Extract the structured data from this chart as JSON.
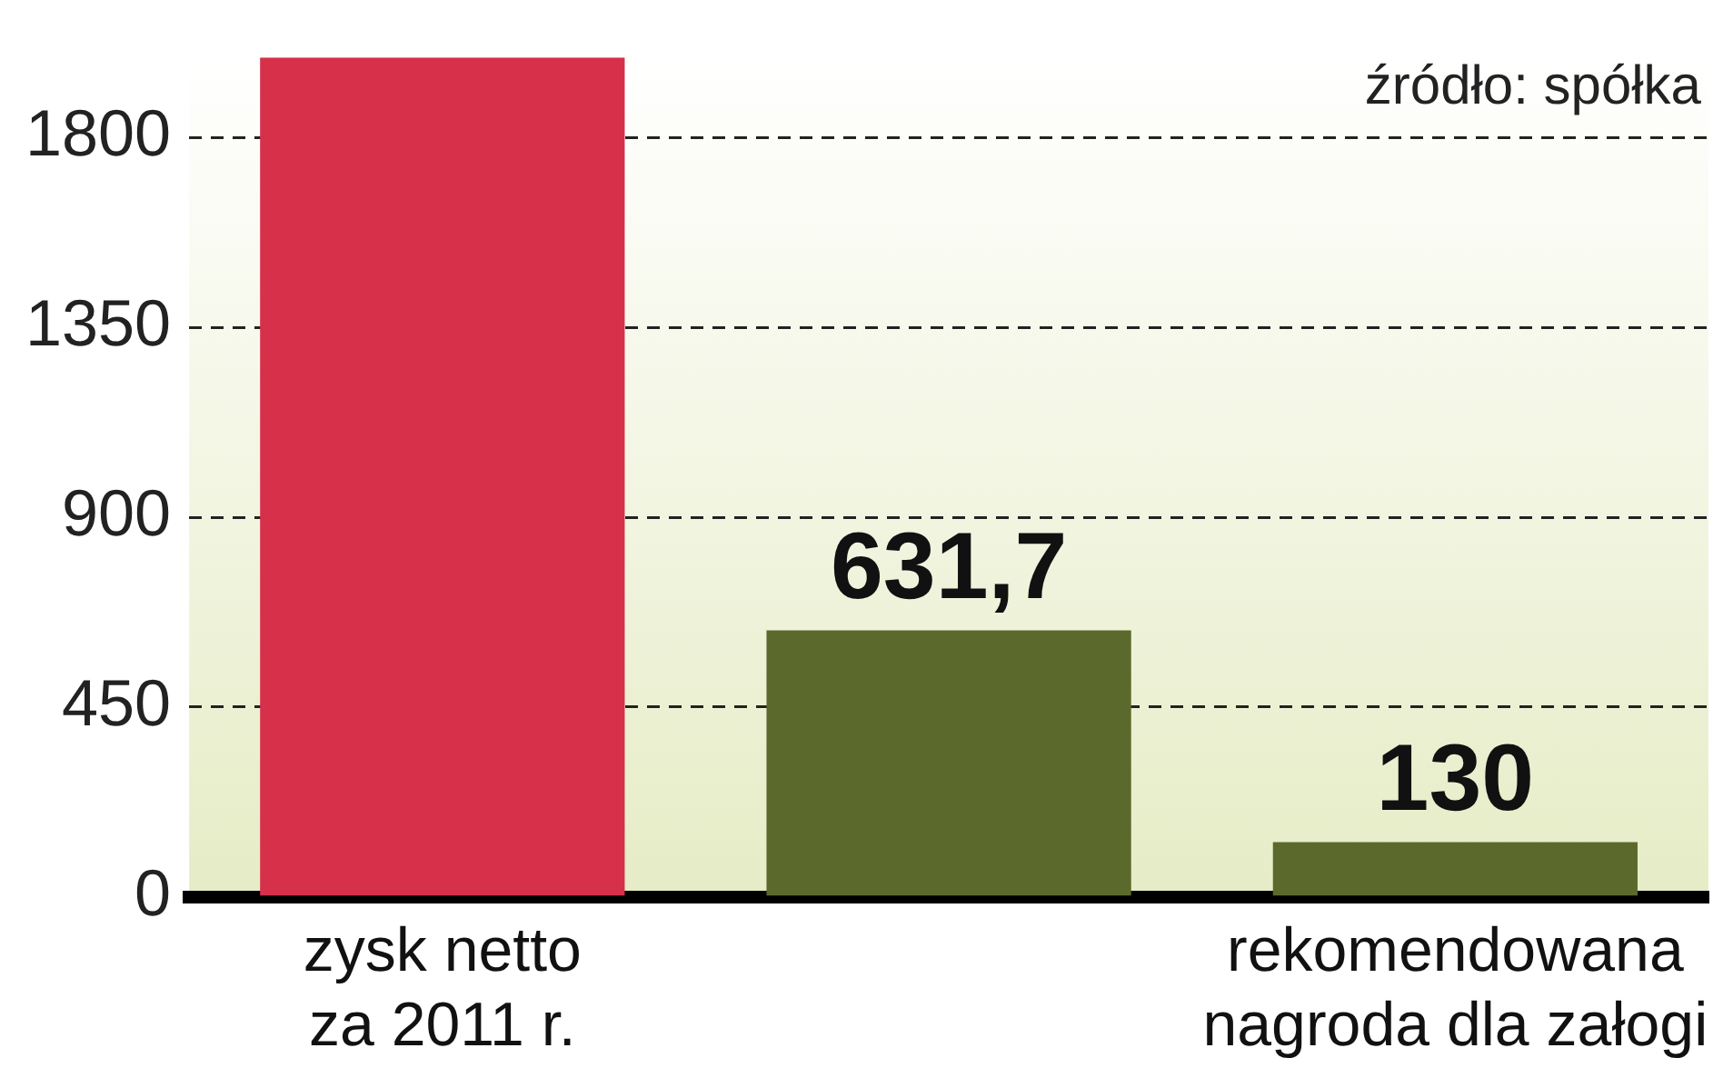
{
  "chart_data": {
    "type": "bar",
    "categories": [
      "zysk netto za 2011 r.",
      null,
      "rekomendowana nagroda dla załogi"
    ],
    "values": [
      1990,
      631.7,
      130
    ],
    "colors": [
      "#d6304a",
      "#5b6a2c",
      "#5b6a2c"
    ],
    "value_labels": [
      null,
      "631,7",
      "130"
    ],
    "ylim": [
      0,
      1990
    ],
    "yticks": [
      0,
      450,
      900,
      1350,
      1800
    ],
    "grid": "y",
    "annotations": [
      "źródło: spółka"
    ]
  }
}
